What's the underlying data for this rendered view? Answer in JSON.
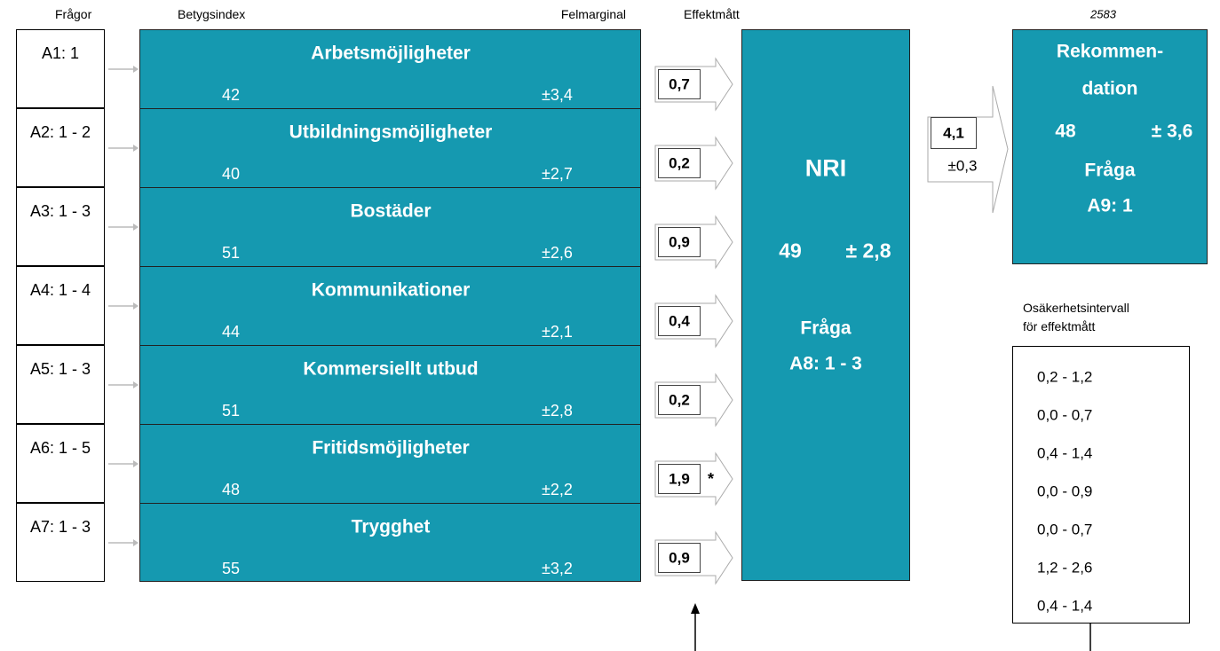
{
  "headers": {
    "questions": "Frågor",
    "index": "Betygsindex",
    "margin": "Felmarginal",
    "effect": "Effektmått",
    "id": "2583"
  },
  "questions": [
    "A1: 1",
    "A2: 1 - 2",
    "A3: 1 - 3",
    "A4: 1 - 4",
    "A5: 1 - 3",
    "A6: 1 - 5",
    "A7: 1 - 3"
  ],
  "indices": [
    {
      "name": "Arbetsmöjligheter",
      "value": "42",
      "margin": "±3,4"
    },
    {
      "name": "Utbildningsmöjligheter",
      "value": "40",
      "margin": "±2,7"
    },
    {
      "name": "Bostäder",
      "value": "51",
      "margin": "±2,6"
    },
    {
      "name": "Kommunikationer",
      "value": "44",
      "margin": "±2,1"
    },
    {
      "name": "Kommersiellt utbud",
      "value": "51",
      "margin": "±2,8"
    },
    {
      "name": "Fritidsmöjligheter",
      "value": "48",
      "margin": "±2,2"
    },
    {
      "name": "Trygghet",
      "value": "55",
      "margin": "±3,2"
    }
  ],
  "effects": [
    {
      "value": "0,7"
    },
    {
      "value": "0,2"
    },
    {
      "value": "0,9"
    },
    {
      "value": "0,4"
    },
    {
      "value": "0,2"
    },
    {
      "value": "1,9",
      "note": "*"
    },
    {
      "value": "0,9"
    }
  ],
  "nri": {
    "title": "NRI",
    "value": "49",
    "margin": "± 2,8",
    "question_label": "Fråga",
    "question": "A8: 1 - 3"
  },
  "nri_effect": {
    "value": "4,1",
    "margin": "±0,3"
  },
  "recommendation": {
    "title": [
      "Rekommen-",
      "dation"
    ],
    "value": "48",
    "margin": "± 3,6",
    "question_label": "Fråga",
    "question": "A9: 1"
  },
  "intervals": {
    "title": [
      "Osäkerhetsintervall",
      "för effektmått"
    ],
    "items": [
      "0,2 - 1,2",
      "0,0 - 0,7",
      "0,4 - 1,4",
      "0,0 - 0,9",
      "0,0 - 0,7",
      "1,2 - 2,6",
      "0,4 - 1,4"
    ]
  }
}
